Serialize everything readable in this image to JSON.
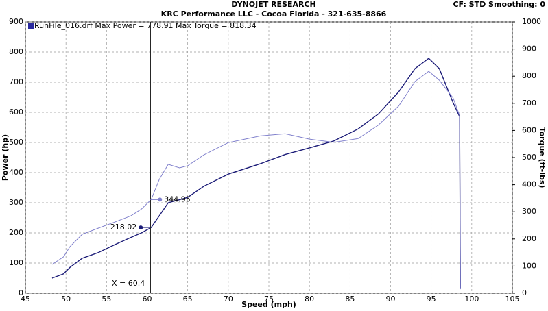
{
  "chart_data": {
    "type": "line",
    "title": "DYNOJET RESEARCH",
    "subtitle": "KRC Performance LLC - Cocoa Florida - 321-635-8866",
    "settings_text": "CF: STD  Smoothing: 0",
    "legend_text": "RunFile_016.drf Max Power = 778.91    Max Torque = 818.34",
    "x_label": "Speed (mph)",
    "y_label": "Power (hp)",
    "y2_label": "Torque (ft-lbs)",
    "x": [
      48.3,
      49.7,
      50.5,
      52,
      54,
      56,
      58,
      59.3,
      60.5,
      61.5,
      62.6,
      64,
      65,
      67,
      70,
      74,
      77,
      80,
      83,
      86,
      88.5,
      91,
      93,
      94.7,
      96,
      97.7,
      98.5,
      98.6
    ],
    "series": [
      {
        "name": "Power",
        "color": "#1c1c78",
        "values": [
          50,
          64,
          86,
          116,
          135,
          161,
          185,
          200,
          218,
          257,
          300,
          310,
          318,
          355,
          395,
          430,
          460,
          482,
          505,
          545,
          595,
          668,
          745,
          779,
          745,
          632,
          586,
          15
        ]
      },
      {
        "name": "Torque",
        "color": "#8080cc",
        "axis": "y2",
        "values": [
          106,
          134,
          172,
          217,
          240,
          262,
          285,
          310,
          345,
          420,
          475,
          462,
          470,
          510,
          555,
          580,
          588,
          568,
          556,
          570,
          620,
          690,
          780,
          818,
          785,
          720,
          655,
          15
        ]
      }
    ],
    "cursor": {
      "value": 60.4,
      "label": "X = 60.4"
    },
    "annotations": [
      {
        "series": 0,
        "value": 218.02,
        "label": "218.02"
      },
      {
        "series": 1,
        "value": 344.95,
        "label": "344.95"
      }
    ],
    "xlim": [
      45,
      105
    ],
    "xticks": [
      45,
      50,
      55,
      60,
      65,
      70,
      75,
      80,
      85,
      90,
      95,
      100,
      105
    ],
    "ylim": [
      0,
      900
    ],
    "yticks": [
      0,
      100,
      200,
      300,
      400,
      500,
      600,
      700,
      800,
      900
    ],
    "y2lim": [
      0,
      1000
    ],
    "y2ticks": [
      0,
      100,
      200,
      300,
      400,
      500,
      600,
      700,
      800,
      900,
      1000
    ],
    "grid": true
  }
}
